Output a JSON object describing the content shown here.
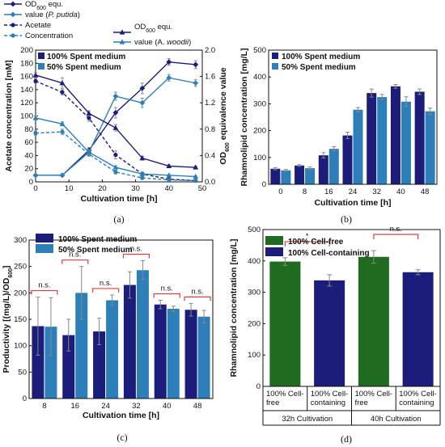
{
  "colors": {
    "dark": "#1c1c7a",
    "light": "#2c7fb8",
    "green": "#1f6b1f",
    "red": "#d94040",
    "axis": "#111111",
    "error": "#888888"
  },
  "chart_data": [
    {
      "panel_label": "(a)",
      "type": "line",
      "xlabel": "Cultivation time [h]",
      "ylabel": "Acetate concentration [mM]",
      "ylabel_right_prefix": "OD",
      "ylabel_right_sub": "600",
      "ylabel_right_suffix": " equivalence  value",
      "xlim": [
        0,
        50
      ],
      "ylim": [
        0,
        200
      ],
      "ylim_right": [
        0,
        2.0
      ],
      "xticks": [
        "0",
        "10",
        "20",
        "30",
        "40",
        "50"
      ],
      "yticks": [
        "0",
        "20",
        "40",
        "60",
        "80",
        "100",
        "120",
        "140",
        "160",
        "180",
        "200"
      ],
      "yticks_right": [
        "0.0",
        "0.4",
        "0.8",
        "1.2",
        "1.6",
        "2.0"
      ],
      "legend": {
        "groups": [
          "100% Spent medium",
          "50% Spent medium"
        ],
        "items": [
          {
            "prefix": "OD",
            "sub": "600",
            "suffix": " equ."
          },
          {
            "prefix": "value (",
            "italic": "P. putida",
            "suffix": ")"
          },
          {
            "prefix": "Acetate",
            "sub": "",
            "suffix": ""
          },
          {
            "prefix": "Concentration",
            "sub": "",
            "suffix": ""
          },
          {
            "prefix": "OD",
            "sub": "600",
            "suffix": " equ."
          },
          {
            "prefix": "value (A. ",
            "italic": "woodii",
            "suffix": ")"
          }
        ]
      },
      "series": [
        {
          "group": "100% Spent medium",
          "kind": "Acetate",
          "axis": "left",
          "color": "#1c1c7a",
          "dash": true,
          "marker": "circle",
          "x": [
            0,
            8,
            16,
            24,
            32,
            40,
            48
          ],
          "y": [
            153,
            136,
            97,
            41,
            12,
            4,
            2
          ],
          "err": [
            3,
            4,
            5,
            6,
            3,
            2,
            1
          ]
        },
        {
          "group": "50% Spent medium",
          "kind": "Acetate",
          "axis": "left",
          "color": "#2c7fb8",
          "dash": true,
          "marker": "circle",
          "x": [
            0,
            8,
            16,
            24,
            32,
            40,
            48
          ],
          "y": [
            74,
            76,
            42,
            15,
            6,
            3,
            2
          ],
          "err": [
            3,
            4,
            3,
            3,
            2,
            1,
            1
          ]
        },
        {
          "group": "100% Spent medium",
          "kind": "OD600 P. putida",
          "axis": "right",
          "color": "#1c1c7a",
          "dash": false,
          "marker": "diamond",
          "x": [
            0,
            8,
            16,
            24,
            32,
            40,
            48
          ],
          "y": [
            0.1,
            0.1,
            0.48,
            1.05,
            1.42,
            1.82,
            1.78
          ],
          "err": [
            0.01,
            0.01,
            0.04,
            0.08,
            0.08,
            0.05,
            0.06
          ]
        },
        {
          "group": "50% Spent medium",
          "kind": "OD600 P. putida",
          "axis": "right",
          "color": "#2c7fb8",
          "dash": false,
          "marker": "diamond",
          "x": [
            0,
            8,
            16,
            24,
            32,
            40,
            48
          ],
          "y": [
            0.1,
            0.1,
            0.45,
            1.3,
            1.2,
            1.58,
            1.5
          ],
          "err": [
            0.01,
            0.01,
            0.04,
            0.06,
            0.07,
            0.05,
            0.05
          ]
        },
        {
          "group": "100% Spent medium",
          "kind": "OD600 A. woodii",
          "axis": "right",
          "color": "#1c1c7a",
          "dash": false,
          "marker": "triangle",
          "x": [
            0,
            8,
            16,
            24,
            32,
            40,
            48
          ],
          "y": [
            1.62,
            1.5,
            1.04,
            0.82,
            0.36,
            0.24,
            0.22
          ],
          "err": [
            0.04,
            0.08,
            0.04,
            0.05,
            0.03,
            0.02,
            0.02
          ]
        },
        {
          "group": "50% Spent medium",
          "kind": "OD600 A. woodii",
          "axis": "right",
          "color": "#2c7fb8",
          "dash": false,
          "marker": "triangle",
          "x": [
            0,
            8,
            16,
            24,
            32,
            40,
            48
          ],
          "y": [
            0.97,
            0.88,
            0.45,
            0.22,
            0.12,
            0.1,
            0.08
          ],
          "err": [
            0.03,
            0.03,
            0.03,
            0.02,
            0.02,
            0.01,
            0.01
          ]
        }
      ]
    },
    {
      "panel_label": "(b)",
      "type": "bar",
      "xlabel": "Cultivation time [h]",
      "ylabel": "Rhamnolipid concentration [mg/L]",
      "categories": [
        "0",
        "8",
        "16",
        "24",
        "32",
        "40",
        "48"
      ],
      "ylim": [
        0,
        500
      ],
      "yticks": [
        "0",
        "100",
        "200",
        "300",
        "400",
        "500"
      ],
      "legend": [
        "100% Spent medium",
        "50% Spent medium"
      ],
      "series": [
        {
          "name": "100% Spent medium",
          "values": [
            58,
            70,
            108,
            182,
            340,
            365,
            345
          ],
          "err": [
            4,
            3,
            10,
            12,
            15,
            7,
            10
          ]
        },
        {
          "name": "50% Spent medium",
          "values": [
            52,
            60,
            132,
            278,
            325,
            308,
            272
          ],
          "err": [
            3,
            5,
            8,
            8,
            10,
            18,
            12
          ]
        }
      ]
    },
    {
      "panel_label": "(c)",
      "type": "bar",
      "xlabel": "Cultivation time [h]",
      "ylabel_prefix": "Productivity [(mg/L)/OD",
      "ylabel_sub": "600",
      "ylabel_suffix": "]",
      "categories": [
        "8",
        "16",
        "24",
        "32",
        "40",
        "48"
      ],
      "ylim": [
        0,
        300
      ],
      "yticks": [
        "0",
        "50",
        "100",
        "150",
        "200",
        "250",
        "300"
      ],
      "legend": [
        "100% Spent medium",
        "50% Spent medium"
      ],
      "annotations": [
        "n.s.",
        "n.s.",
        "n.s.",
        "n.s.",
        "n.s.",
        "n.s."
      ],
      "series": [
        {
          "name": "100% Spent medium",
          "values": [
            137,
            120,
            127,
            215,
            178,
            168
          ],
          "err": [
            55,
            30,
            25,
            25,
            8,
            12
          ]
        },
        {
          "name": "50% Spent medium",
          "values": [
            136,
            200,
            186,
            243,
            170,
            155
          ],
          "err": [
            55,
            50,
            10,
            18,
            5,
            12
          ]
        }
      ]
    },
    {
      "panel_label": "(d)",
      "type": "bar",
      "ylabel": "Rhamnolipid concentration [mg/L]",
      "ylim": [
        0,
        500
      ],
      "yticks": [
        "0",
        "100",
        "200",
        "300",
        "400",
        "500"
      ],
      "legend": [
        "100% Cell-free",
        "100% Cell-containing"
      ],
      "categories": [
        "100% Cell-\nfree",
        "100% Cell-\ncontaining",
        "100% Cell-\nfree",
        "100% Cell-\ncontaining"
      ],
      "groups": [
        "32h Cultivation",
        "40h Cultivation"
      ],
      "values": [
        398,
        338,
        413,
        364
      ],
      "err": [
        12,
        18,
        20,
        8
      ],
      "bar_series": [
        "100% Cell-free",
        "100% Cell-containing",
        "100% Cell-free",
        "100% Cell-containing"
      ],
      "annotations": [
        "*",
        "n.s."
      ]
    }
  ]
}
